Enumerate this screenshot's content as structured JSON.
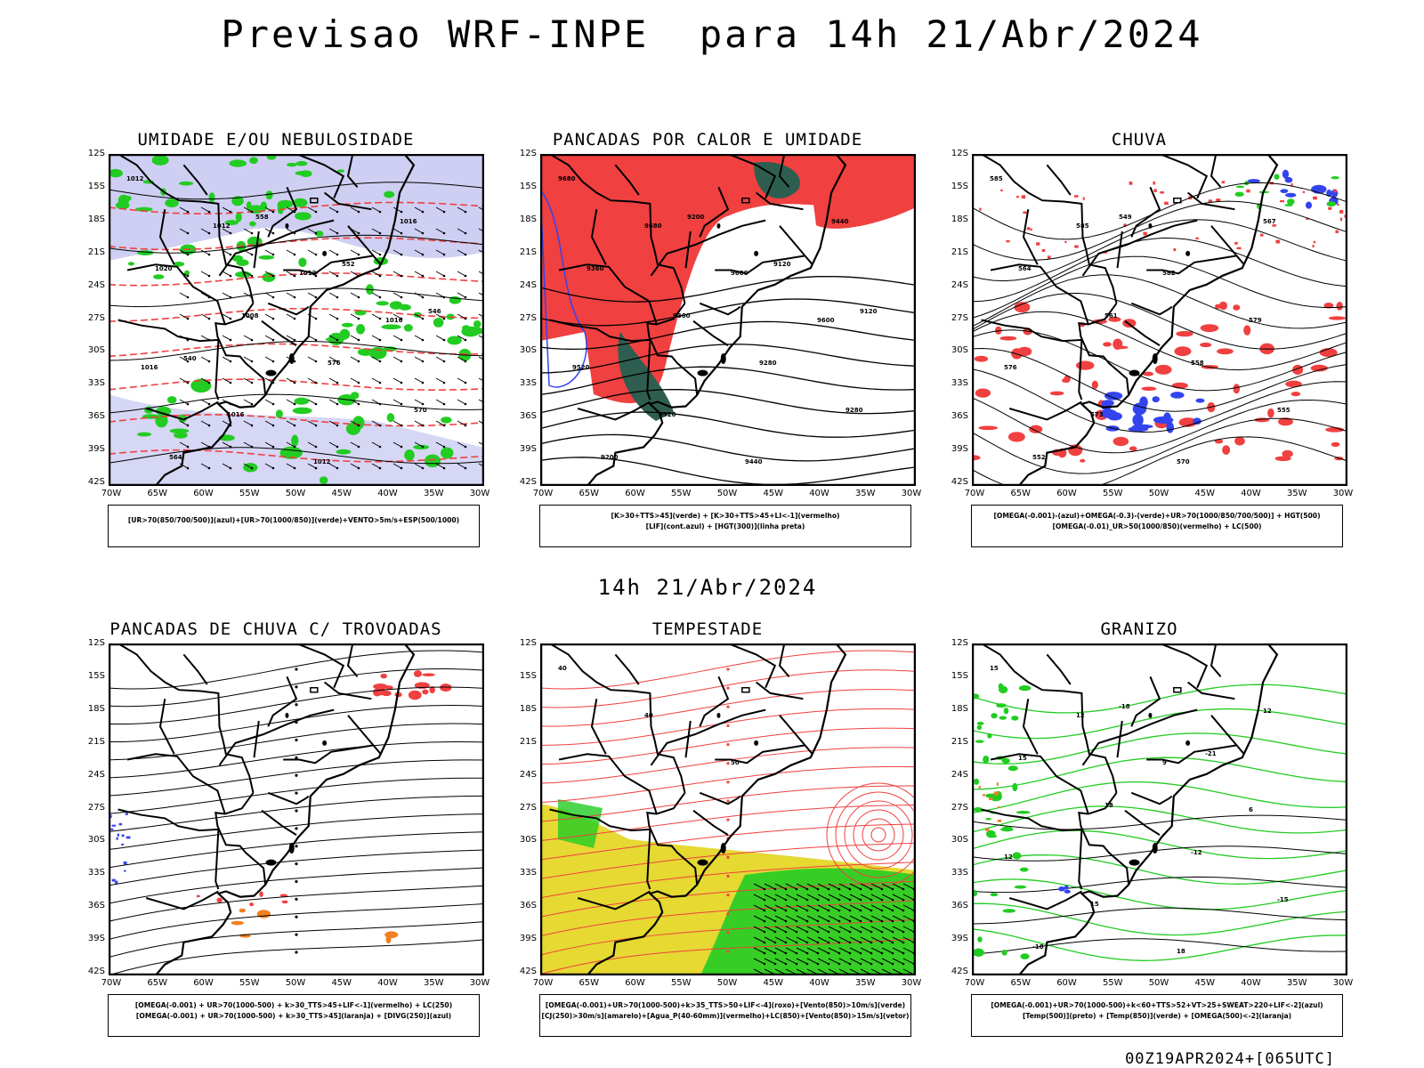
{
  "header": {
    "title": "Previsao WRF-INPE  para 14h 21/Abr/2024"
  },
  "mid_date": "14h 21/Abr/2024",
  "run_stamp": "00Z19APR2024+[065UTC]",
  "axes": {
    "lat_labels": [
      "12S",
      "15S",
      "18S",
      "21S",
      "24S",
      "27S",
      "30S",
      "33S",
      "36S",
      "39S",
      "42S"
    ],
    "lon_labels": [
      "70W",
      "65W",
      "60W",
      "55W",
      "50W",
      "45W",
      "40W",
      "35W",
      "30W"
    ]
  },
  "colors": {
    "red": "#f04040",
    "green": "#22cc22",
    "blue": "#3344ee",
    "lavender": "#bbbbee",
    "dark_green": "#2e5e50",
    "yellow": "#e5d932",
    "orange": "#f08020"
  },
  "panels": [
    {
      "id": "umidade",
      "title": "UMIDADE E/OU NEBULOSIDADE",
      "legend": [
        "[UR>70(850/700/500)](azul)+[UR>70(1000/850)](verde)+VENTO>5m/s+ESP(500/1000)"
      ],
      "contour_labels": [
        "1012",
        "1012",
        "1012",
        "1016",
        "1016",
        "1016",
        "1012",
        "1016",
        "1020",
        "1008",
        "576",
        "570",
        "564",
        "558",
        "552",
        "546",
        "540"
      ]
    },
    {
      "id": "pancadas-calor",
      "title": "PANCADAS POR CALOR E UMIDADE",
      "legend": [
        "[K>30+TTS>45](verde) + [K>30+TTS>45+LI<-1](vermelho)",
        "[LIF](cont.azul) + [HGT(300)](linha preta)"
      ],
      "contour_labels": [
        "9680",
        "9680",
        "9600",
        "9600",
        "9520",
        "9520",
        "9440",
        "9440",
        "9360",
        "9360",
        "9280",
        "9280",
        "9200",
        "9200",
        "9120",
        "9120"
      ]
    },
    {
      "id": "chuva",
      "title": "CHUVA",
      "legend": [
        "[OMEGA(-0.001)-(azul)+OMEGA(-0.3)-(verde)+UR>70(1000/850/700/500)] + HGT(500)",
        "[OMEGA(-0.01)_UR>50(1000/850)(vermelho) + LC(500)"
      ],
      "contour_labels": [
        "585",
        "585",
        "582",
        "579",
        "576",
        "573",
        "570",
        "567",
        "564",
        "561",
        "558",
        "555",
        "552",
        "549"
      ]
    },
    {
      "id": "pancadas-trovoadas",
      "title": "PANCADAS DE CHUVA C/ TROVOADAS",
      "legend": [
        "[OMEGA(-0.001) + UR>70(1000-500) + k>30_TTS>45+LIF<-1](vermelho) + LC(250)",
        "[OMEGA(-0.001) + UR>70(1000-500) + k>30_TTS>45](laranja) + [DIVG(250)](azul)"
      ],
      "contour_labels": []
    },
    {
      "id": "tempestade",
      "title": "TEMPESTADE",
      "legend": [
        "[OMEGA(-0.001)+UR>70(1000-500)+k>35_TTS>50+LIF<-4](roxo)+[Vento(850)>10m/s](verde)",
        "[CJ(250)>30m/s](amarelo)+[Agua_P(40-60mm)](vermelho)+LC(850)+[Vento(850)>15m/s](vetor)"
      ],
      "contour_labels": [
        "40",
        "40",
        "50"
      ]
    },
    {
      "id": "granizo",
      "title": "GRANIZO",
      "legend": [
        "[OMEGA(-0.001)+UR>70(1000-500)+k<60+TTS>52+VT>25+SWEAT>220+LIF<-2](azul)",
        "[Temp(500)](preto) + [Temp(850)](verde) + [OMEGA(500)<-2](laranja)"
      ],
      "contour_labels": [
        "15",
        "12",
        "9",
        "6",
        "12",
        "15",
        "18",
        "12",
        "15",
        "18",
        "-12",
        "-15",
        "-18",
        "-18",
        "-21"
      ]
    }
  ]
}
